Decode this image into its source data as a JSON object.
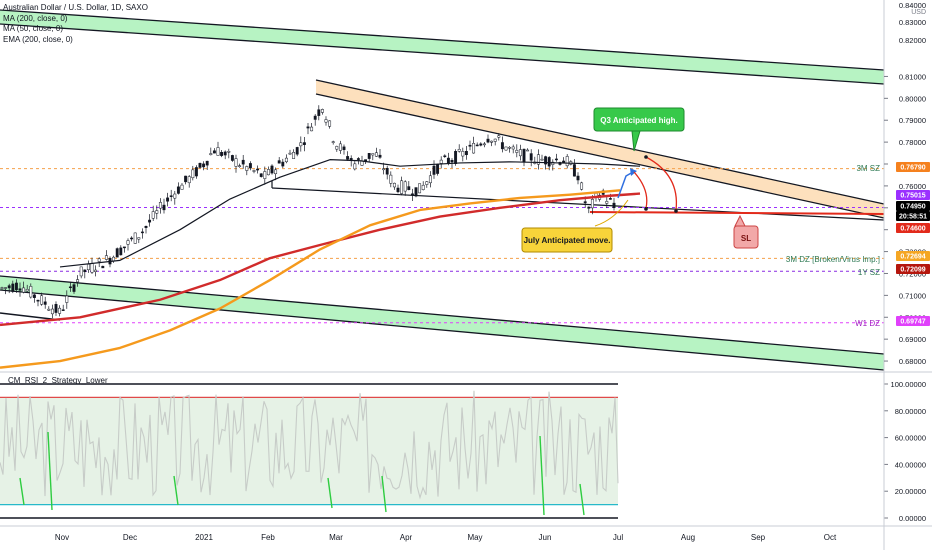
{
  "legend": {
    "title": "Australian Dollar / U.S. Dollar, 1D, SAXO",
    "lines": [
      "MA (200, close, 0)",
      "MA (50, close, 0)",
      "EMA (200, close, 0)"
    ]
  },
  "rsi_title": "CM_RSI_2_Strategy_Lower",
  "annotations": {
    "q3": "Q3 Anticipated high.",
    "july": "July Anticipated move.",
    "sl": "SL"
  },
  "colors": {
    "green_band": "#b7f3c3",
    "orange_band": "#fde0bd",
    "ma200": "#d12b2b",
    "ma50": "#131722",
    "ema200": "#f59a1d",
    "up_candle": "#ffffff",
    "down_candle": "#131722",
    "rsi": "#c7ccc8"
  },
  "chart_data": [
    {
      "type": "candlestick",
      "title": "Australian Dollar / U.S. Dollar, 1D, SAXO",
      "currency": "USD",
      "y_ticks": [
        "0.81000",
        "0.80000",
        "0.79000",
        "0.78000",
        "0.77000",
        "0.76000",
        "0.75000",
        "0.74000",
        "0.73000",
        "0.72000",
        "0.71000",
        "0.70000",
        "0.69000",
        "0.68000"
      ],
      "y_ticks_partial": [
        "0.84000",
        "0.83000",
        "0.82000"
      ],
      "x_ticks": [
        "Nov",
        "Dec",
        "2021",
        "Feb",
        "Mar",
        "Apr",
        "May",
        "Jun",
        "Jul",
        "Aug",
        "Sep",
        "Oct"
      ],
      "price_tags": [
        {
          "text": "0.76790",
          "color": "#f5811e"
        },
        {
          "text": "0.75015",
          "color": "#9b30ff"
        },
        {
          "text": "0.74950",
          "color": "#000000"
        },
        {
          "text": "20:58:51",
          "color": "#000000"
        },
        {
          "text": "0.74600",
          "color": "#e22a1b"
        },
        {
          "text": "0.72694",
          "color": "#f5a623"
        },
        {
          "text": "0.72099",
          "color": "#b5160d"
        },
        {
          "text": "0.69747",
          "color": "#e040fb"
        }
      ],
      "level_labels": [
        "3M SZ",
        "3M DZ [Broken/Virus Imp.]",
        "1Y SZ",
        "W1 DZ"
      ],
      "levels": [
        {
          "value": 0.7679,
          "label": "3M SZ",
          "color": "#f5a04a"
        },
        {
          "value": 0.75015,
          "color": "#9b30ff"
        },
        {
          "value": 0.7269,
          "label": "3M DZ [Broken/Virus Imp.]",
          "color": "#f5a04a"
        },
        {
          "value": 0.721,
          "label": "1Y SZ",
          "color": "#8a2be2"
        },
        {
          "value": 0.6975,
          "label": "W1 DZ",
          "color": "#e040fb"
        }
      ],
      "ylim": [
        0.675,
        0.844
      ],
      "series": [
        {
          "name": "MA (200, close, 0)",
          "values": [
            [
              0,
              0.6965
            ],
            [
              80,
              0.7
            ],
            [
              160,
              0.708
            ],
            [
              220,
              0.717
            ],
            [
              270,
              0.727
            ],
            [
              320,
              0.733
            ],
            [
              380,
              0.74
            ],
            [
              440,
              0.746
            ],
            [
              500,
              0.75
            ],
            [
              560,
              0.7535
            ],
            [
              610,
              0.7555
            ],
            [
              640,
              0.7565
            ]
          ]
        },
        {
          "name": "MA (50, close, 0)",
          "values": [
            [
              60,
              0.723
            ],
            [
              120,
              0.726
            ],
            [
              180,
              0.74
            ],
            [
              230,
              0.754
            ],
            [
              280,
              0.764
            ],
            [
              330,
              0.772
            ],
            [
              360,
              0.7715
            ],
            [
              400,
              0.769
            ],
            [
              460,
              0.7705
            ],
            [
              510,
              0.771
            ],
            [
              560,
              0.7705
            ],
            [
              600,
              0.77
            ],
            [
              640,
              0.769
            ]
          ]
        },
        {
          "name": "EMA (200, close, 0)",
          "values": [
            [
              0,
              0.677
            ],
            [
              60,
              0.68
            ],
            [
              120,
              0.686
            ],
            [
              170,
              0.694
            ],
            [
              220,
              0.704
            ],
            [
              270,
              0.717
            ],
            [
              320,
              0.731
            ],
            [
              370,
              0.742
            ],
            [
              420,
              0.749
            ],
            [
              470,
              0.752
            ],
            [
              520,
              0.7545
            ],
            [
              570,
              0.756
            ],
            [
              620,
              0.758
            ]
          ]
        }
      ]
    },
    {
      "type": "line",
      "title": "CM_RSI_2_Strategy_Lower",
      "y_ticks": [
        "100.00000",
        "80.00000",
        "60.00000",
        "40.00000",
        "20.00000",
        "0.00000"
      ],
      "ylim": [
        0,
        100
      ],
      "reference_lines": [
        100,
        90,
        10,
        0
      ]
    }
  ]
}
